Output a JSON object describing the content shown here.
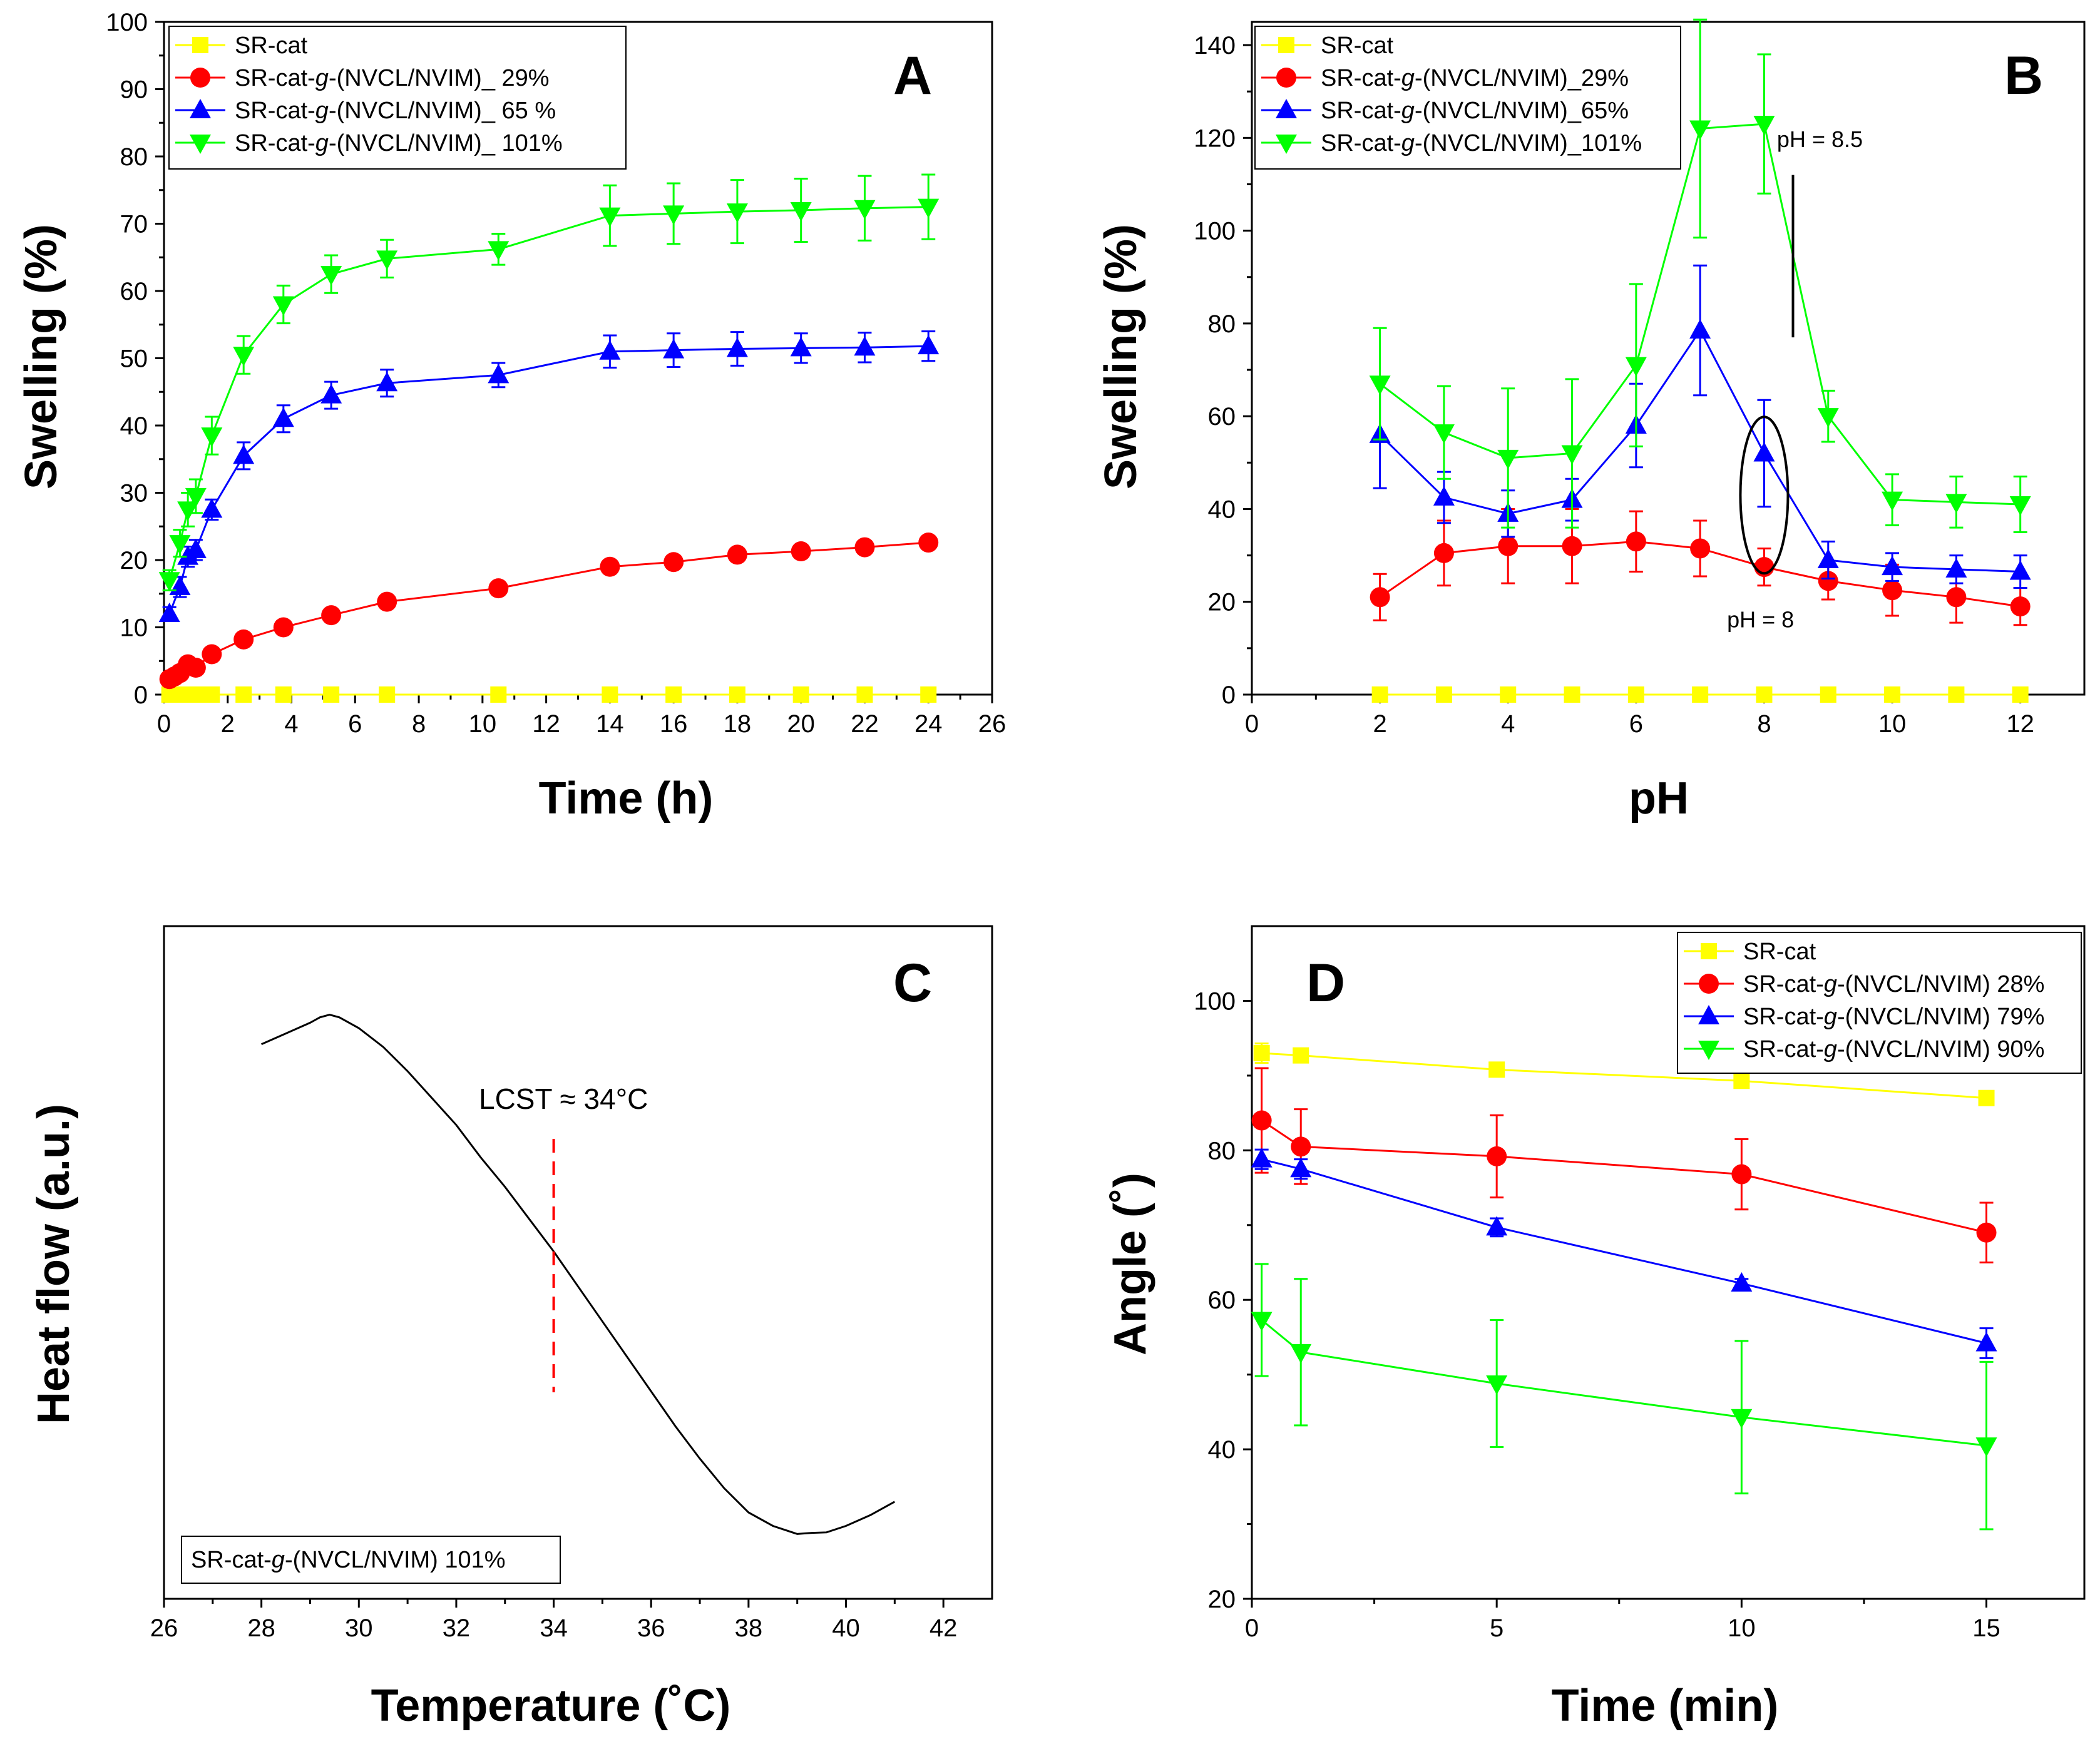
{
  "chart_data": [
    {
      "panel": "A",
      "type": "line",
      "xlabel": "Time (h)",
      "ylabel": "Swelling (%)",
      "xlim": [
        0,
        26
      ],
      "ylim": [
        0,
        100
      ],
      "xticks": [
        "0",
        "2",
        "4",
        "6",
        "8",
        "10",
        "12",
        "14",
        "16",
        "18",
        "20",
        "22",
        "24",
        "26"
      ],
      "yticks": [
        "0",
        "10",
        "20",
        "30",
        "40",
        "50",
        "60",
        "70",
        "80",
        "90",
        "100"
      ],
      "legend_position": "top-left",
      "series": [
        {
          "name_prefix": "SR-cat",
          "name_italic": "",
          "name_suffix": "",
          "color": "#ffff00",
          "marker": "square",
          "x": [
            0.17,
            0.33,
            0.5,
            0.75,
            1,
            1.5,
            2.5,
            3.75,
            5.25,
            7,
            10.5,
            14,
            16,
            18,
            20,
            22,
            24
          ],
          "y": [
            0,
            0,
            0,
            0,
            0,
            0,
            0,
            0,
            0,
            0,
            0,
            0,
            0,
            0,
            0,
            0,
            0
          ],
          "err": [
            0,
            0,
            0,
            0,
            0,
            0,
            0,
            0,
            0,
            0,
            0,
            0,
            0,
            0,
            0,
            0,
            0
          ]
        },
        {
          "name_prefix": "SR-cat-",
          "name_italic": "g",
          "name_suffix": "-(NVCL/NVIM)_ 29%",
          "color": "#ff0000",
          "marker": "circle",
          "x": [
            0.17,
            0.33,
            0.5,
            0.75,
            1,
            1.5,
            2.5,
            3.75,
            5.25,
            7,
            10.5,
            14,
            16,
            18,
            20,
            22,
            24
          ],
          "y": [
            2.3,
            2.7,
            3.2,
            4.5,
            4.0,
            6.0,
            8.2,
            10.0,
            11.8,
            13.8,
            15.8,
            19.0,
            19.7,
            20.8,
            21.3,
            21.9,
            22.6
          ],
          "err": [
            0.5,
            0.5,
            0.5,
            0.6,
            0.6,
            0.6,
            0.6,
            0.6,
            0.8,
            0.7,
            0.6,
            0.6,
            0.6,
            0.6,
            0.6,
            0.6,
            0.6
          ]
        },
        {
          "name_prefix": "SR-cat-",
          "name_italic": "g",
          "name_suffix": "-(NVCL/NVIM)_ 65 %",
          "color": "#0000ff",
          "marker": "triangle-up",
          "x": [
            0.17,
            0.5,
            0.75,
            1,
            1.5,
            2.5,
            3.75,
            5.25,
            7,
            10.5,
            14,
            16,
            18,
            20,
            22,
            24
          ],
          "y": [
            12.0,
            16.0,
            20.5,
            21.5,
            27.5,
            35.5,
            41.0,
            44.5,
            46.3,
            47.5,
            51.0,
            51.2,
            51.4,
            51.5,
            51.6,
            51.8
          ],
          "err": [
            1.0,
            1.5,
            1.5,
            1.5,
            1.5,
            2.0,
            2.0,
            2.0,
            2.0,
            1.8,
            2.4,
            2.5,
            2.5,
            2.2,
            2.2,
            2.2
          ]
        },
        {
          "name_prefix": "SR-cat-",
          "name_italic": "g",
          "name_suffix": "-(NVCL/NVIM)_ 101%",
          "color": "#00ff00",
          "marker": "triangle-down",
          "x": [
            0.17,
            0.5,
            0.75,
            1,
            1.5,
            2.5,
            3.75,
            5.25,
            7,
            10.5,
            14,
            16,
            18,
            20,
            22,
            24
          ],
          "y": [
            17.0,
            22.5,
            27.5,
            29.5,
            38.5,
            50.5,
            58.0,
            62.5,
            64.8,
            66.2,
            71.2,
            71.5,
            71.8,
            72.0,
            72.3,
            72.5
          ],
          "err": [
            1.5,
            2.0,
            2.5,
            2.5,
            2.8,
            2.8,
            2.8,
            2.8,
            2.8,
            2.3,
            4.5,
            4.5,
            4.7,
            4.7,
            4.8,
            4.8
          ]
        }
      ]
    },
    {
      "panel": "B",
      "type": "line",
      "xlabel": "pH",
      "ylabel": "Swelling (%)",
      "xlim": [
        0,
        13
      ],
      "ylim": [
        0,
        145
      ],
      "xticks": [
        "0",
        "2",
        "4",
        "6",
        "8",
        "10",
        "12"
      ],
      "yticks": [
        "0",
        "20",
        "40",
        "60",
        "80",
        "100",
        "120",
        "140"
      ],
      "legend_position": "top-left",
      "series": [
        {
          "name_prefix": "SR-cat",
          "name_italic": "",
          "name_suffix": "",
          "color": "#ffff00",
          "marker": "square",
          "x": [
            2,
            3,
            4,
            5,
            6,
            7,
            8,
            9,
            10,
            11,
            12
          ],
          "y": [
            0,
            0,
            0,
            0,
            0,
            0,
            0,
            0,
            0,
            0,
            0
          ],
          "err": [
            0,
            0,
            0,
            0,
            0,
            0,
            0,
            0,
            0,
            0,
            0
          ]
        },
        {
          "name_prefix": "SR-cat-",
          "name_italic": "g",
          "name_suffix": "-(NVCL/NVIM)_29%",
          "color": "#ff0000",
          "marker": "circle",
          "x": [
            2,
            3,
            4,
            5,
            6,
            7,
            8,
            9,
            10,
            11,
            12
          ],
          "y": [
            21,
            30.5,
            32,
            32,
            33,
            31.5,
            27.5,
            24.5,
            22.5,
            21,
            19
          ],
          "err": [
            5,
            7,
            8,
            8,
            6.5,
            6,
            4,
            4,
            5.5,
            5.5,
            4
          ]
        },
        {
          "name_prefix": "SR-cat-",
          "name_italic": "g",
          "name_suffix": "-(NVCL/NVIM)_65%",
          "color": "#0000ff",
          "marker": "triangle-up",
          "x": [
            2,
            3,
            4,
            5,
            6,
            7,
            8,
            9,
            10,
            11,
            12
          ],
          "y": [
            56,
            42.5,
            39,
            42,
            58,
            78.5,
            52,
            29,
            27.5,
            27,
            26.5
          ],
          "err": [
            11.5,
            5.5,
            5,
            4.5,
            9,
            14,
            11.5,
            4,
            3,
            3,
            3.5
          ]
        },
        {
          "name_prefix": "SR-cat-",
          "name_italic": "g",
          "name_suffix": "-(NVCL/NVIM)_101%",
          "color": "#00ff00",
          "marker": "triangle-down",
          "x": [
            2,
            3,
            4,
            5,
            6,
            7,
            8,
            9,
            10,
            11,
            12
          ],
          "y": [
            67,
            56.5,
            51,
            52,
            71,
            122,
            123,
            60,
            42,
            41.5,
            41
          ],
          "err": [
            12,
            10,
            15,
            16,
            17.5,
            23.5,
            15,
            5.5,
            5.5,
            5.5,
            6
          ]
        }
      ],
      "annotations": {
        "ph85_label": "pH = 8.5",
        "ph8_label": "pH = 8"
      }
    },
    {
      "panel": "C",
      "type": "line",
      "xlabel": "Temperature (˚C)",
      "ylabel": "Heat flow (a.u.)",
      "xlim": [
        26,
        43
      ],
      "xticks": [
        "26",
        "28",
        "30",
        "32",
        "34",
        "36",
        "38",
        "40",
        "42"
      ],
      "series": [
        {
          "name": "SR-cat-g-(NVCL/NVIM) 101%",
          "color": "#000000",
          "x": [
            28,
            28.5,
            29,
            29.2,
            29.4,
            29.6,
            30,
            30.5,
            31,
            31.5,
            32,
            32.5,
            33,
            33.5,
            34,
            34.5,
            35,
            35.5,
            36,
            36.5,
            37,
            37.5,
            38,
            38.5,
            39,
            39.3,
            39.6,
            40,
            40.5,
            41
          ],
          "y": [
            0.92,
            0.94,
            0.96,
            0.97,
            0.975,
            0.97,
            0.95,
            0.915,
            0.87,
            0.82,
            0.77,
            0.71,
            0.655,
            0.595,
            0.535,
            0.47,
            0.405,
            0.34,
            0.275,
            0.21,
            0.15,
            0.095,
            0.05,
            0.025,
            0.01,
            0.012,
            0.013,
            0.025,
            0.045,
            0.07
          ]
        }
      ],
      "annotations": {
        "lcst_label": "LCST ≈ 34°C",
        "lcst_x": 34
      },
      "legend": {
        "prefix": "SR-cat-",
        "italic": "g",
        "suffix": "-(NVCL/NVIM) 101%"
      }
    },
    {
      "panel": "D",
      "type": "line",
      "xlabel": "Time (min)",
      "ylabel": "Angle (˚)",
      "xlim": [
        0,
        17
      ],
      "ylim": [
        20,
        110
      ],
      "xticks": [
        "0",
        "5",
        "10",
        "15"
      ],
      "yticks": [
        "20",
        "40",
        "60",
        "80",
        "100"
      ],
      "legend_position": "top-right",
      "series": [
        {
          "name_prefix": "SR-cat",
          "name_italic": "",
          "name_suffix": "",
          "color": "#ffff00",
          "marker": "square",
          "x": [
            0.2,
            1,
            5,
            10,
            15
          ],
          "y": [
            93,
            92.7,
            90.8,
            89.3,
            87
          ],
          "err": [
            1.3,
            0.8,
            0.5,
            0.5,
            0.8
          ]
        },
        {
          "name_prefix": "SR-cat-",
          "name_italic": "g",
          "name_suffix": "-(NVCL/NVIM) 28%",
          "color": "#ff0000",
          "marker": "circle",
          "x": [
            0.2,
            1,
            5,
            10,
            15
          ],
          "y": [
            84,
            80.5,
            79.2,
            76.8,
            69
          ],
          "err": [
            7,
            5,
            5.5,
            4.7,
            4
          ]
        },
        {
          "name_prefix": "SR-cat-",
          "name_italic": "g",
          "name_suffix": "-(NVCL/NVIM) 79%",
          "color": "#0000ff",
          "marker": "triangle-up",
          "x": [
            0.2,
            1,
            5,
            10,
            15
          ],
          "y": [
            78.8,
            77.5,
            69.7,
            62.2,
            54.2
          ],
          "err": [
            1.3,
            1.3,
            1.2,
            0.6,
            2
          ]
        },
        {
          "name_prefix": "SR-cat-",
          "name_italic": "g",
          "name_suffix": "-(NVCL/NVIM) 90%",
          "color": "#00ff00",
          "marker": "triangle-down",
          "x": [
            0.2,
            1,
            5,
            10,
            15
          ],
          "y": [
            57.3,
            53,
            48.8,
            44.3,
            40.5
          ],
          "err": [
            7.5,
            9.8,
            8.5,
            10.2,
            11.2
          ]
        }
      ]
    }
  ]
}
